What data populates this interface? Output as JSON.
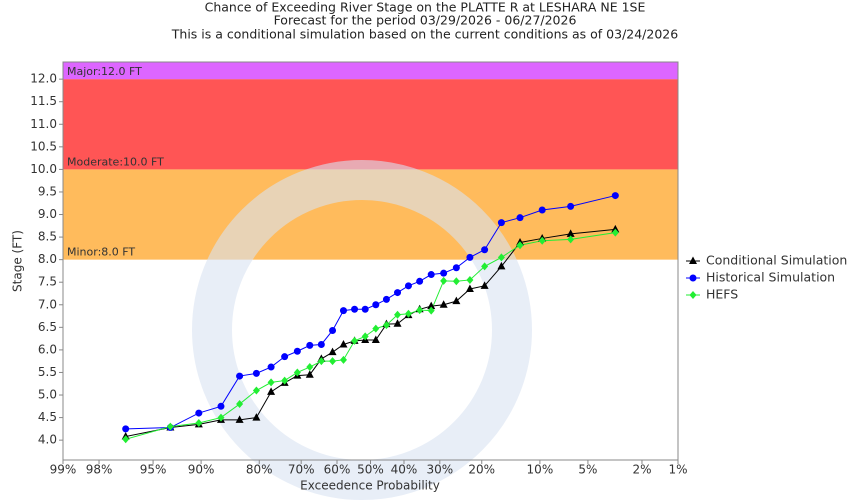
{
  "chart_data": {
    "type": "line",
    "title": "Chance of Exceeding River Stage on the PLATTE R at LESHARA NE 1SE",
    "subtitle": "Forecast for the period 03/29/2026 - 06/27/2026",
    "note": "This is a conditional simulation based on the current conditions as of 03/24/2026",
    "x_label": "Exceedence Probability",
    "y_label": "Stage (FT)",
    "xscale": "probit",
    "xlim": [
      99,
      1
    ],
    "xticks": [
      {
        "value": 99,
        "label": "99%"
      },
      {
        "value": 98,
        "label": "98%"
      },
      {
        "value": 95,
        "label": "95%"
      },
      {
        "value": 90,
        "label": "90%"
      },
      {
        "value": 80,
        "label": "80%"
      },
      {
        "value": 70,
        "label": "70%"
      },
      {
        "value": 60,
        "label": "60%"
      },
      {
        "value": 50,
        "label": "50%"
      },
      {
        "value": 40,
        "label": "40%"
      },
      {
        "value": 30,
        "label": "30%"
      },
      {
        "value": 20,
        "label": "20%"
      },
      {
        "value": 10,
        "label": "10%"
      },
      {
        "value": 5,
        "label": "5%"
      },
      {
        "value": 2,
        "label": "2%"
      },
      {
        "value": 1,
        "label": "1%"
      }
    ],
    "ylim": [
      3.56,
      12.38
    ],
    "yticks": [
      {
        "value": 4,
        "label": "4.0"
      },
      4.5,
      {
        "value": 5,
        "label": "5.0"
      },
      5.5,
      {
        "value": 6,
        "label": "6.0"
      },
      6.5,
      {
        "value": 7,
        "label": "7.0"
      },
      7.5,
      {
        "value": 8,
        "label": "8.0"
      },
      8.5,
      {
        "value": 9,
        "label": "9.0"
      },
      9.5,
      {
        "value": 10,
        "label": "10.0"
      },
      10.5,
      {
        "value": 11,
        "label": "11.0"
      },
      11.5,
      {
        "value": 12,
        "label": "12.0"
      }
    ],
    "bands": [
      {
        "label": "Minor:8.0 FT",
        "from": 8,
        "to": 10,
        "color": "#ffbb5c"
      },
      {
        "label": "Moderate:10.0 FT",
        "from": 10,
        "to": 12,
        "color": "#ff5555"
      },
      {
        "label": "Major:12.0 FT",
        "from": 12,
        "color": "#dd66ff"
      }
    ],
    "x": [
      96.8,
      93.5,
      90.3,
      87.1,
      83.9,
      80.6,
      77.4,
      74.2,
      71.0,
      67.7,
      64.5,
      61.3,
      58.1,
      54.8,
      51.6,
      48.4,
      45.2,
      41.9,
      38.7,
      35.5,
      32.3,
      29.0,
      25.8,
      22.6,
      19.4,
      16.1,
      12.9,
      9.7,
      6.5,
      3.2
    ],
    "series": [
      {
        "name": "Conditional Simulation",
        "color": "#000000",
        "marker": "triangle",
        "values": [
          4.08,
          4.28,
          4.35,
          4.45,
          4.45,
          4.5,
          5.07,
          5.27,
          5.43,
          5.45,
          5.8,
          5.95,
          6.12,
          6.2,
          6.22,
          6.22,
          6.57,
          6.58,
          6.77,
          6.9,
          6.97,
          7.0,
          7.08,
          7.35,
          7.42,
          7.85,
          8.38,
          8.47,
          8.57,
          8.67
        ]
      },
      {
        "name": "Historical Simulation",
        "color": "#0000ff",
        "marker": "circle",
        "values": [
          4.25,
          4.28,
          4.6,
          4.75,
          5.42,
          5.48,
          5.62,
          5.85,
          5.97,
          6.1,
          6.12,
          6.43,
          6.87,
          6.9,
          6.9,
          7.0,
          7.12,
          7.27,
          7.42,
          7.52,
          7.67,
          7.7,
          7.82,
          8.05,
          8.22,
          8.82,
          8.93,
          9.1,
          9.18,
          9.42
        ]
      },
      {
        "name": "HEFS",
        "color": "#22ee33",
        "marker": "diamond",
        "values": [
          4.02,
          4.3,
          4.38,
          4.5,
          4.8,
          5.1,
          5.28,
          5.32,
          5.5,
          5.62,
          5.75,
          5.75,
          5.78,
          6.2,
          6.3,
          6.47,
          6.55,
          6.78,
          6.8,
          6.88,
          6.87,
          7.53,
          7.52,
          7.55,
          7.85,
          8.05,
          8.32,
          8.42,
          8.45,
          8.6
        ]
      }
    ],
    "legend": "right",
    "grid": false
  }
}
